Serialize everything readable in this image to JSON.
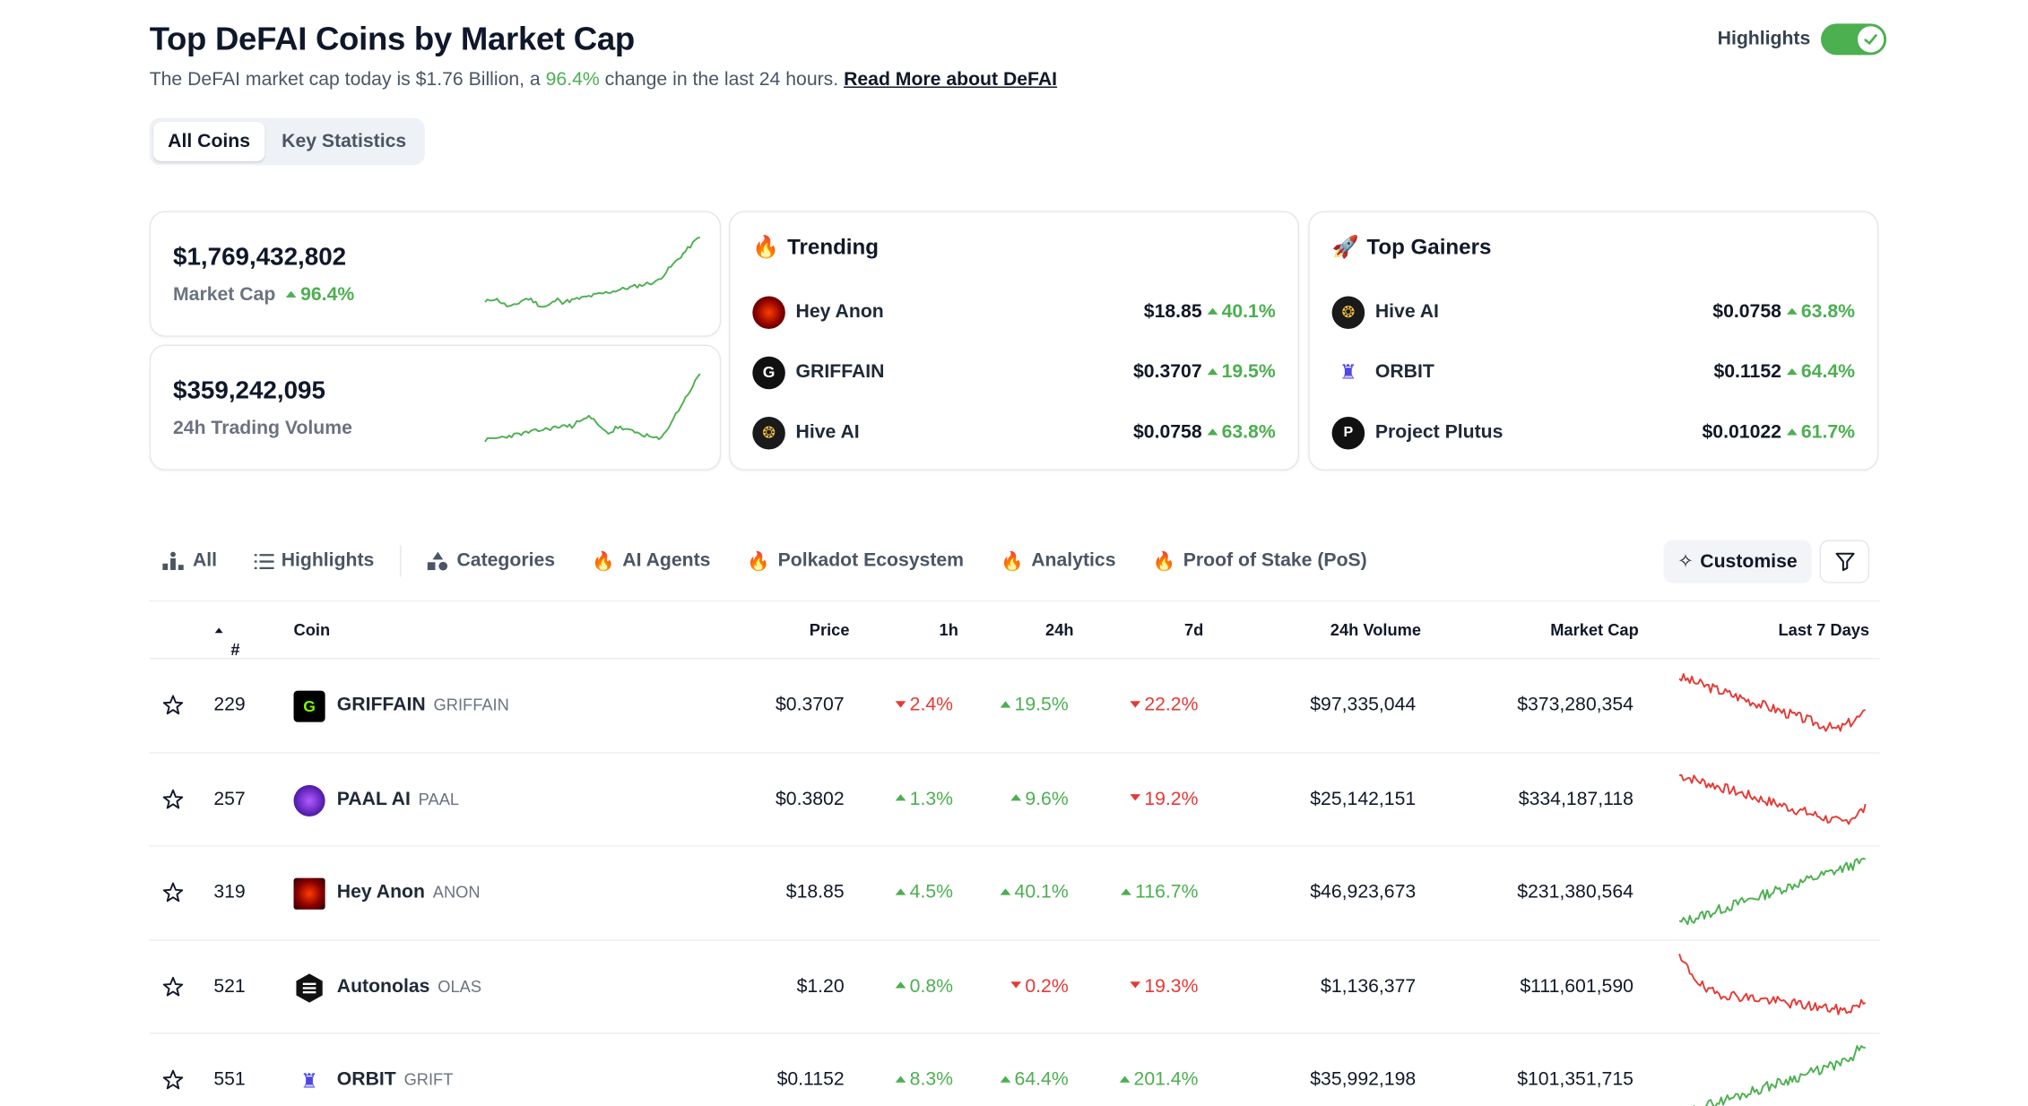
{
  "header": {
    "title": "Top DeFAI Coins by Market Cap",
    "subtitle_prefix": "The DeFAI market cap today is $1.76 Billion, a",
    "subtitle_change": "96.4%",
    "subtitle_suffix": "change in the last 24 hours.",
    "read_more": "Read More about DeFAI",
    "highlights_label": "Highlights",
    "highlights_on": true
  },
  "segment": {
    "items": [
      "All Coins",
      "Key Statistics"
    ],
    "active": 0
  },
  "stats": {
    "market_cap": {
      "value": "$1,769,432,802",
      "label": "Market Cap",
      "change": "96.4%"
    },
    "volume": {
      "value": "$359,242,095",
      "label": "24h Trading Volume"
    }
  },
  "trending": {
    "title": "Trending",
    "icon": "fire-icon",
    "items": [
      {
        "name": "Hey Anon",
        "price": "$18.85",
        "change": "40.1%",
        "dir": "up"
      },
      {
        "name": "GRIFFAIN",
        "price": "$0.3707",
        "change": "19.5%",
        "dir": "up"
      },
      {
        "name": "Hive AI",
        "price": "$0.0758",
        "change": "63.8%",
        "dir": "up"
      }
    ]
  },
  "gainers": {
    "title": "Top Gainers",
    "icon": "rocket-icon",
    "items": [
      {
        "name": "Hive AI",
        "price": "$0.0758",
        "change": "63.8%",
        "dir": "up"
      },
      {
        "name": "ORBIT",
        "price": "$0.1152",
        "change": "64.4%",
        "dir": "up"
      },
      {
        "name": "Project Plutus",
        "price": "$0.01022",
        "change": "61.7%",
        "dir": "up"
      }
    ]
  },
  "tabs": {
    "items": [
      "All",
      "Highlights",
      "Categories",
      "AI Agents",
      "Polkadot Ecosystem",
      "Analytics",
      "Proof of Stake (PoS)"
    ],
    "customise": "Customise"
  },
  "table": {
    "headers": {
      "rank": "#",
      "coin": "Coin",
      "price": "Price",
      "h1": "1h",
      "h24": "24h",
      "d7": "7d",
      "volume": "24h Volume",
      "mcap": "Market Cap",
      "last7": "Last 7 Days"
    },
    "rows": [
      {
        "rank": "229",
        "name": "GRIFFAIN",
        "symbol": "GRIFFAIN",
        "price": "$0.3707",
        "h1": "2.4%",
        "h1_dir": "down",
        "h24": "19.5%",
        "h24_dir": "up",
        "d7": "22.2%",
        "d7_dir": "down",
        "volume": "$97,335,044",
        "mcap": "$373,280,354",
        "trend": "down"
      },
      {
        "rank": "257",
        "name": "PAAL AI",
        "symbol": "PAAL",
        "price": "$0.3802",
        "h1": "1.3%",
        "h1_dir": "up",
        "h24": "9.6%",
        "h24_dir": "up",
        "d7": "19.2%",
        "d7_dir": "down",
        "volume": "$25,142,151",
        "mcap": "$334,187,118",
        "trend": "down"
      },
      {
        "rank": "319",
        "name": "Hey Anon",
        "symbol": "ANON",
        "price": "$18.85",
        "h1": "4.5%",
        "h1_dir": "up",
        "h24": "40.1%",
        "h24_dir": "up",
        "d7": "116.7%",
        "d7_dir": "up",
        "volume": "$46,923,673",
        "mcap": "$231,380,564",
        "trend": "up"
      },
      {
        "rank": "521",
        "name": "Autonolas",
        "symbol": "OLAS",
        "price": "$1.20",
        "h1": "0.8%",
        "h1_dir": "up",
        "h24": "0.2%",
        "h24_dir": "down",
        "d7": "19.3%",
        "d7_dir": "down",
        "volume": "$1,136,377",
        "mcap": "$111,601,590",
        "trend": "down"
      },
      {
        "rank": "551",
        "name": "ORBIT",
        "symbol": "GRIFT",
        "price": "$0.1152",
        "h1": "8.3%",
        "h1_dir": "up",
        "h24": "64.4%",
        "h24_dir": "up",
        "d7": "201.4%",
        "d7_dir": "up",
        "volume": "$35,992,198",
        "mcap": "$101,351,715",
        "trend": "up"
      }
    ]
  },
  "colors": {
    "up": "#4caf50",
    "down": "#e53935"
  }
}
